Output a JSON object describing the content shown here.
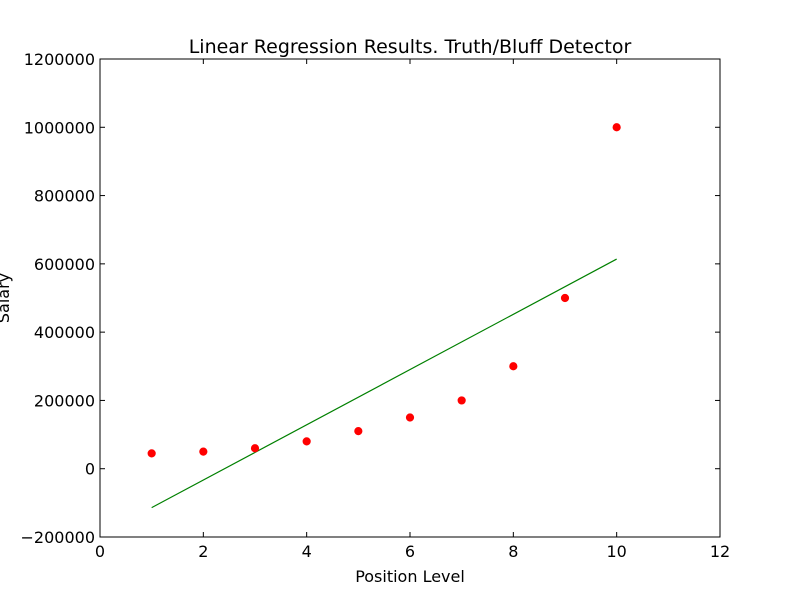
{
  "chart_data": {
    "type": "scatter",
    "title": "Linear Regression Results. Truth/Bluff Detector",
    "xlabel": "Position Level",
    "ylabel": "Salary",
    "xlim": [
      0,
      12
    ],
    "ylim": [
      -200000,
      1200000
    ],
    "xticks": [
      0,
      2,
      4,
      6,
      8,
      10,
      12
    ],
    "yticks": [
      -200000,
      0,
      200000,
      400000,
      600000,
      800000,
      1000000,
      1200000
    ],
    "grid": false,
    "series": [
      {
        "type": "scatter",
        "color": "#ff0000",
        "x": [
          1,
          2,
          3,
          4,
          5,
          6,
          7,
          8,
          9,
          10
        ],
        "y": [
          45000,
          50000,
          60000,
          80000,
          110000,
          150000,
          200000,
          300000,
          500000,
          1000000
        ]
      },
      {
        "type": "line",
        "color": "#008000",
        "x": [
          1,
          10
        ],
        "y": [
          -114000,
          614000
        ]
      }
    ]
  }
}
